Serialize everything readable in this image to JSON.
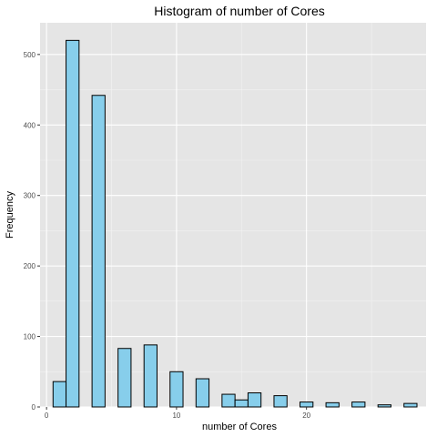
{
  "chart_data": {
    "type": "bar",
    "title": "Histogram of number of Cores",
    "xlabel": "number of Cores",
    "ylabel": "Frequency",
    "xlim": [
      -0.5,
      29.2
    ],
    "ylim": [
      0,
      545
    ],
    "x_ticks": [
      0,
      10,
      20
    ],
    "y_ticks": [
      0,
      100,
      200,
      300,
      400,
      500
    ],
    "bin_width": 1,
    "bins": [
      {
        "x": 1,
        "count": 36
      },
      {
        "x": 2,
        "count": 520
      },
      {
        "x": 4,
        "count": 442
      },
      {
        "x": 6,
        "count": 83
      },
      {
        "x": 8,
        "count": 88
      },
      {
        "x": 10,
        "count": 50
      },
      {
        "x": 12,
        "count": 40
      },
      {
        "x": 14,
        "count": 18
      },
      {
        "x": 15,
        "count": 10
      },
      {
        "x": 16,
        "count": 20
      },
      {
        "x": 18,
        "count": 16
      },
      {
        "x": 20,
        "count": 7
      },
      {
        "x": 22,
        "count": 6
      },
      {
        "x": 24,
        "count": 7
      },
      {
        "x": 26,
        "count": 3
      },
      {
        "x": 28,
        "count": 5
      }
    ],
    "grid": true,
    "bar_fill": "#87ceeb",
    "bar_stroke": "#000000",
    "panel_background": "#e5e5e5"
  }
}
